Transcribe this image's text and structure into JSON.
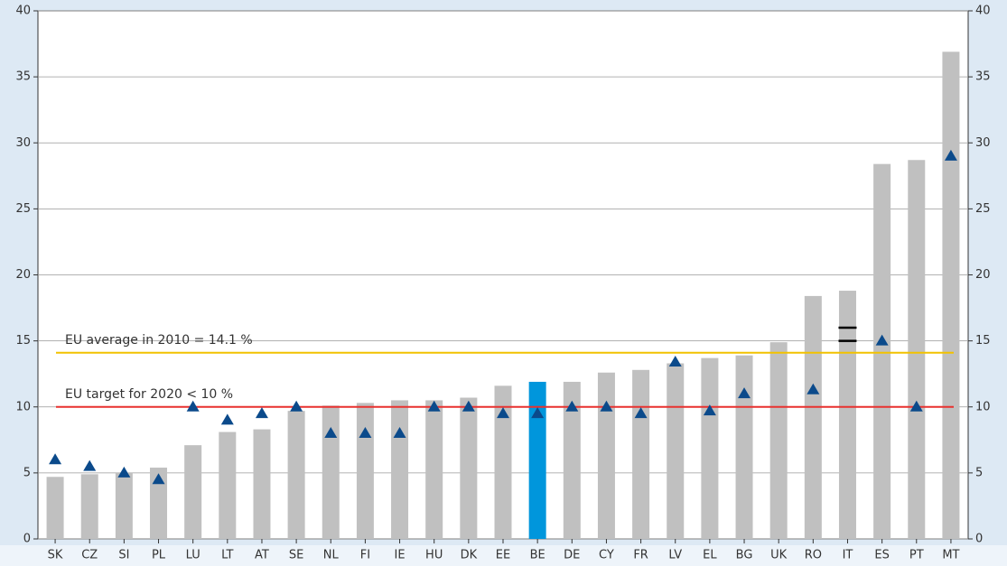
{
  "chart_data": {
    "type": "bar",
    "categories": [
      "SK",
      "CZ",
      "SI",
      "PL",
      "LU",
      "LT",
      "AT",
      "SE",
      "NL",
      "FI",
      "IE",
      "HU",
      "DK",
      "EE",
      "BE",
      "DE",
      "CY",
      "FR",
      "LV",
      "EL",
      "BG",
      "UK",
      "RO",
      "IT",
      "ES",
      "PT",
      "MT"
    ],
    "values": [
      4.7,
      4.9,
      5.0,
      5.4,
      7.1,
      8.1,
      8.3,
      9.7,
      10.1,
      10.3,
      10.5,
      10.5,
      10.7,
      11.6,
      11.9,
      11.9,
      12.6,
      12.8,
      13.3,
      13.7,
      13.9,
      14.9,
      18.4,
      18.8,
      28.4,
      28.7,
      36.9
    ],
    "colors": [
      "#c0c0c0",
      "#c0c0c0",
      "#c0c0c0",
      "#c0c0c0",
      "#c0c0c0",
      "#c0c0c0",
      "#c0c0c0",
      "#c0c0c0",
      "#c0c0c0",
      "#c0c0c0",
      "#c0c0c0",
      "#c0c0c0",
      "#c0c0c0",
      "#c0c0c0",
      "#0096dc",
      "#c0c0c0",
      "#c0c0c0",
      "#c0c0c0",
      "#c0c0c0",
      "#c0c0c0",
      "#c0c0c0",
      "#c0c0c0",
      "#c0c0c0",
      "#c0c0c0",
      "#c0c0c0",
      "#c0c0c0",
      "#c0c0c0"
    ],
    "markers": {
      "color": "#0b4a8b",
      "values": [
        6,
        5.5,
        5,
        4.5,
        10,
        9,
        9.5,
        10,
        8,
        8,
        8,
        10,
        10,
        9.5,
        9.5,
        10,
        10,
        9.5,
        13.4,
        9.7,
        11,
        null,
        11.3,
        null,
        15,
        10,
        29
      ]
    },
    "range_markers": {
      "color": "#000000",
      "values": [
        null,
        null,
        null,
        null,
        null,
        null,
        null,
        null,
        null,
        null,
        null,
        null,
        null,
        null,
        null,
        null,
        null,
        null,
        null,
        null,
        null,
        null,
        null,
        [
          15,
          16
        ],
        null,
        null,
        null
      ]
    },
    "reference_lines": [
      {
        "value": 14.1,
        "label": "EU average in 2010 = 14.1 %",
        "color": "#f2c200"
      },
      {
        "value": 10,
        "label": "EU target for 2020 < 10 %",
        "color": "#e8312f"
      }
    ],
    "ylim": [
      0,
      40
    ],
    "yticks": [
      0,
      5,
      10,
      15,
      20,
      25,
      30,
      35,
      40
    ],
    "y2lim": [
      0,
      40
    ],
    "y2ticks": [
      0,
      5,
      10,
      15,
      20,
      25,
      30,
      35,
      40
    ],
    "grid": true
  }
}
